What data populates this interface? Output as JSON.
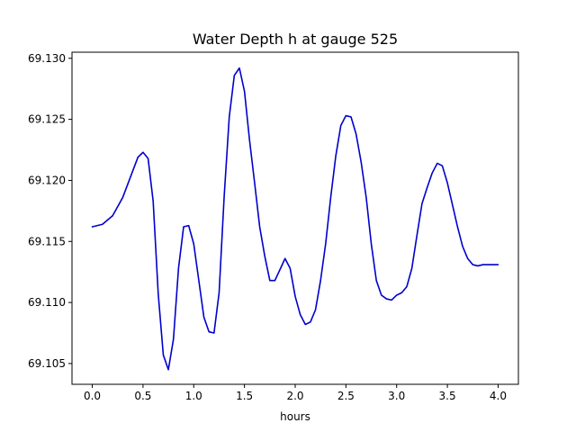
{
  "chart_data": {
    "type": "line",
    "title": "Water Depth h at gauge 525",
    "xlabel": "hours",
    "ylabel": "",
    "xlim": [
      -0.2,
      4.2
    ],
    "ylim": [
      69.1033,
      69.1305
    ],
    "xticks": [
      0.0,
      0.5,
      1.0,
      1.5,
      2.0,
      2.5,
      3.0,
      3.5,
      4.0
    ],
    "xtick_labels": [
      "0.0",
      "0.5",
      "1.0",
      "1.5",
      "2.0",
      "2.5",
      "3.0",
      "3.5",
      "4.0"
    ],
    "yticks": [
      69.105,
      69.11,
      69.115,
      69.12,
      69.125,
      69.13
    ],
    "ytick_labels": [
      "69.105",
      "69.110",
      "69.115",
      "69.120",
      "69.125",
      "69.130"
    ],
    "grid": false,
    "series": [
      {
        "color": "#0000cc",
        "x": [
          0.0,
          0.1,
          0.2,
          0.3,
          0.4,
          0.45,
          0.5,
          0.55,
          0.6,
          0.65,
          0.7,
          0.75,
          0.8,
          0.85,
          0.9,
          0.95,
          1.0,
          1.05,
          1.1,
          1.15,
          1.2,
          1.25,
          1.3,
          1.35,
          1.4,
          1.45,
          1.5,
          1.55,
          1.6,
          1.65,
          1.7,
          1.75,
          1.8,
          1.85,
          1.9,
          1.95,
          2.0,
          2.05,
          2.1,
          2.15,
          2.2,
          2.25,
          2.3,
          2.35,
          2.4,
          2.45,
          2.5,
          2.55,
          2.6,
          2.65,
          2.7,
          2.75,
          2.8,
          2.85,
          2.9,
          2.95,
          3.0,
          3.05,
          3.1,
          3.15,
          3.2,
          3.25,
          3.3,
          3.35,
          3.4,
          3.45,
          3.5,
          3.55,
          3.6,
          3.65,
          3.7,
          3.75,
          3.8,
          3.85,
          3.9,
          3.95,
          4.0
        ],
        "values": [
          69.1162,
          69.1164,
          69.1171,
          69.1186,
          69.1208,
          69.1219,
          69.1223,
          69.1218,
          69.1183,
          69.1107,
          69.1057,
          69.1045,
          69.107,
          69.1128,
          69.1162,
          69.1163,
          69.1148,
          69.1118,
          69.1088,
          69.1076,
          69.1075,
          69.1108,
          69.1187,
          69.1252,
          69.1286,
          69.1292,
          69.1273,
          69.1233,
          69.1198,
          69.1162,
          69.1138,
          69.1118,
          69.1118,
          69.1127,
          69.1136,
          69.1128,
          69.1105,
          69.109,
          69.1082,
          69.1084,
          69.1094,
          69.1118,
          69.1148,
          69.1186,
          69.122,
          69.1245,
          69.1253,
          69.1252,
          69.1238,
          69.1215,
          69.1186,
          69.1148,
          69.1118,
          69.1106,
          69.1103,
          69.1102,
          69.1106,
          69.1108,
          69.1113,
          69.1128,
          69.1155,
          69.1181,
          69.1194,
          69.1206,
          69.1214,
          69.1212,
          69.1198,
          69.118,
          69.1162,
          69.1146,
          69.1136,
          69.1131,
          69.113,
          69.1131,
          69.1131,
          69.1131,
          69.1131
        ]
      }
    ]
  }
}
